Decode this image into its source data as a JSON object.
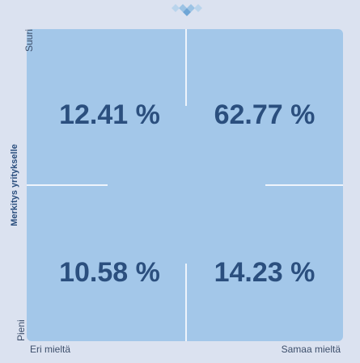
{
  "chart_data": {
    "type": "quadrant",
    "y_label": "Merkitys yritykselle",
    "y_top_label": "Suuri",
    "y_bottom_label": "Pieni",
    "x_left_label": "Eri mieltä",
    "x_right_label": "Samaa mieltä",
    "values": [
      12.41,
      62.77,
      10.58,
      14.23
    ],
    "value_labels": [
      "12.41 %",
      "62.77 %",
      "10.58 %",
      "14.23 %"
    ],
    "color": "#a3c7e9"
  }
}
